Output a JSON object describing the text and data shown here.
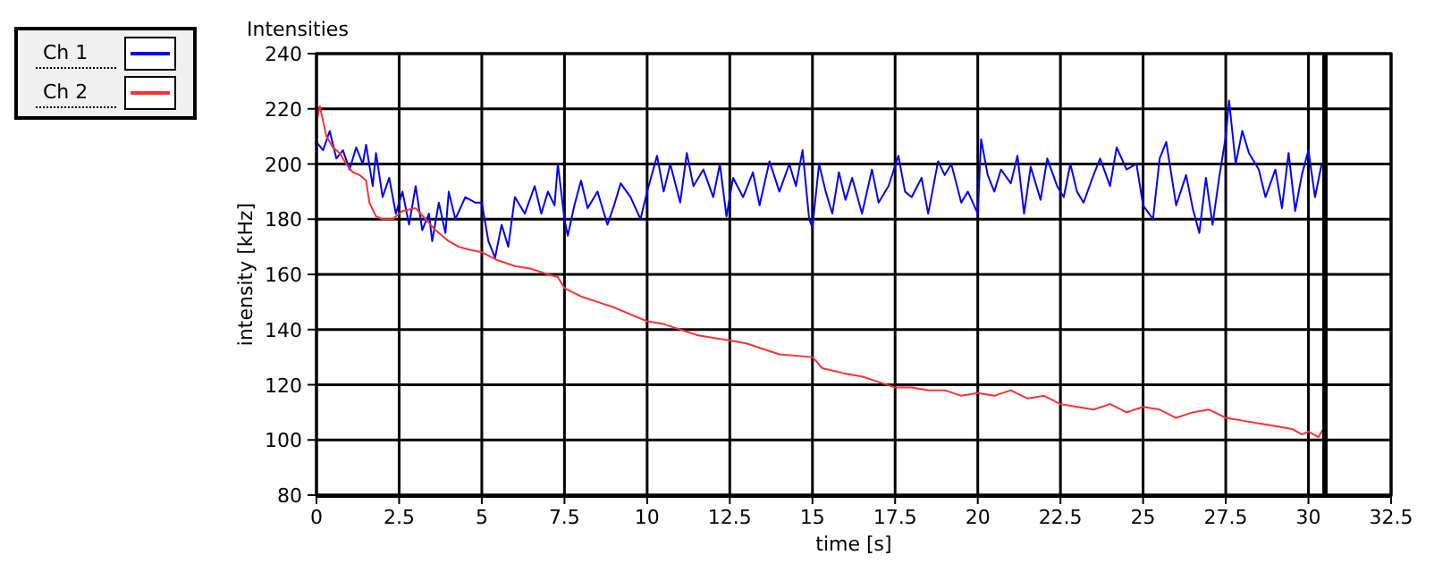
{
  "chart_data": {
    "type": "line",
    "title": "Intensities",
    "xlabel": "time [s]",
    "ylabel": "intensity [kHz]",
    "xlim": [
      0,
      32.5
    ],
    "xticks": [
      0,
      2.5,
      5,
      7.5,
      10,
      12.5,
      15,
      17.5,
      20,
      22.5,
      25,
      27.5,
      30,
      32.5
    ],
    "ylim": [
      80,
      240
    ],
    "yticks": [
      80,
      100,
      120,
      140,
      160,
      180,
      200,
      220,
      240
    ],
    "grid": true,
    "legend": "top left",
    "line_style": "solid",
    "marker": "none",
    "ref_lines": [
      {
        "axis": "x",
        "value": 30.5,
        "color": "#000000"
      }
    ],
    "series": [
      {
        "name": "Ch 1",
        "color": "#0000ff",
        "x": [
          0,
          0.2,
          0.4,
          0.6,
          0.8,
          1,
          1.2,
          1.4,
          1.5,
          1.7,
          1.8,
          2,
          2.2,
          2.4,
          2.6,
          2.8,
          3,
          3.2,
          3.4,
          3.5,
          3.7,
          3.9,
          4,
          4.2,
          4.5,
          4.8,
          5,
          5.2,
          5.4,
          5.6,
          5.8,
          6,
          6.3,
          6.6,
          6.8,
          7,
          7.2,
          7.3,
          7.5,
          7.6,
          7.8,
          8,
          8.2,
          8.5,
          8.8,
          9,
          9.2,
          9.5,
          9.8,
          10,
          10.3,
          10.5,
          10.7,
          11,
          11.2,
          11.4,
          11.7,
          12,
          12.2,
          12.4,
          12.6,
          12.9,
          13.2,
          13.4,
          13.7,
          14,
          14.3,
          14.5,
          14.7,
          14.9,
          15,
          15.2,
          15.4,
          15.6,
          15.8,
          16,
          16.2,
          16.5,
          16.8,
          17,
          17.3,
          17.6,
          17.8,
          18,
          18.3,
          18.5,
          18.8,
          19,
          19.2,
          19.5,
          19.7,
          20,
          20.1,
          20.3,
          20.5,
          20.7,
          21,
          21.2,
          21.4,
          21.6,
          21.9,
          22.1,
          22.4,
          22.6,
          22.8,
          23,
          23.2,
          23.5,
          23.7,
          24,
          24.2,
          24.5,
          24.8,
          25,
          25.3,
          25.5,
          25.7,
          26,
          26.3,
          26.5,
          26.7,
          26.9,
          27.1,
          27.3,
          27.5,
          27.6,
          27.8,
          28,
          28.2,
          28.5,
          28.7,
          29,
          29.2,
          29.4,
          29.6,
          29.8,
          30,
          30.2,
          30.4
        ],
        "values": [
          208,
          205,
          212,
          202,
          205,
          198,
          206,
          200,
          207,
          192,
          204,
          188,
          195,
          182,
          190,
          178,
          192,
          176,
          182,
          172,
          186,
          175,
          190,
          180,
          188,
          186,
          186,
          172,
          166,
          178,
          170,
          188,
          182,
          192,
          182,
          190,
          185,
          200,
          180,
          174,
          185,
          194,
          184,
          190,
          178,
          185,
          193,
          188,
          180,
          190,
          203,
          190,
          200,
          186,
          204,
          192,
          198,
          188,
          200,
          181,
          195,
          188,
          197,
          185,
          201,
          190,
          200,
          192,
          205,
          180,
          177,
          200,
          190,
          182,
          197,
          187,
          195,
          182,
          198,
          186,
          192,
          203,
          190,
          188,
          195,
          182,
          201,
          196,
          200,
          186,
          190,
          182,
          209,
          196,
          190,
          198,
          193,
          203,
          182,
          199,
          187,
          202,
          192,
          188,
          200,
          190,
          186,
          196,
          202,
          192,
          206,
          198,
          200,
          185,
          180,
          202,
          208,
          185,
          196,
          184,
          175,
          195,
          178,
          195,
          210,
          223,
          200,
          212,
          204,
          198,
          188,
          198,
          184,
          204,
          183,
          196,
          205,
          188,
          200
        ]
      },
      {
        "name": "Ch 2",
        "color": "#ff3030",
        "x": [
          0,
          0.1,
          0.3,
          0.5,
          0.7,
          0.9,
          1.1,
          1.3,
          1.5,
          1.6,
          1.8,
          2,
          2.3,
          2.6,
          3,
          3.3,
          3.6,
          4,
          4.3,
          4.6,
          5,
          5.5,
          6,
          6.5,
          7,
          7.3,
          7.5,
          8,
          8.5,
          9,
          10,
          10.5,
          11.5,
          12.5,
          13,
          14,
          15,
          15.3,
          16,
          16.5,
          17,
          17.5,
          18,
          18.5,
          19,
          19.5,
          20,
          20.5,
          21,
          21.5,
          22,
          22.5,
          23,
          23.5,
          24,
          24.5,
          25,
          25.5,
          26,
          26.5,
          27,
          27.5,
          28,
          28.5,
          29,
          29.5,
          29.8,
          30,
          30.3,
          30.5
        ],
        "values": [
          215,
          221,
          210,
          206,
          204,
          200,
          197,
          196,
          194,
          186,
          181,
          180,
          180,
          183,
          184,
          180,
          176,
          172,
          170,
          169,
          168,
          165,
          163,
          162,
          160,
          159,
          155,
          152,
          150,
          148,
          143,
          142,
          138,
          136,
          135,
          131,
          130,
          126,
          124,
          123,
          121,
          119,
          119,
          118,
          118,
          116,
          117,
          116,
          118,
          115,
          116,
          113,
          112,
          111,
          113,
          110,
          112,
          111,
          108,
          110,
          111,
          108,
          107,
          106,
          105,
          104,
          102,
          103,
          101,
          105
        ]
      }
    ]
  }
}
